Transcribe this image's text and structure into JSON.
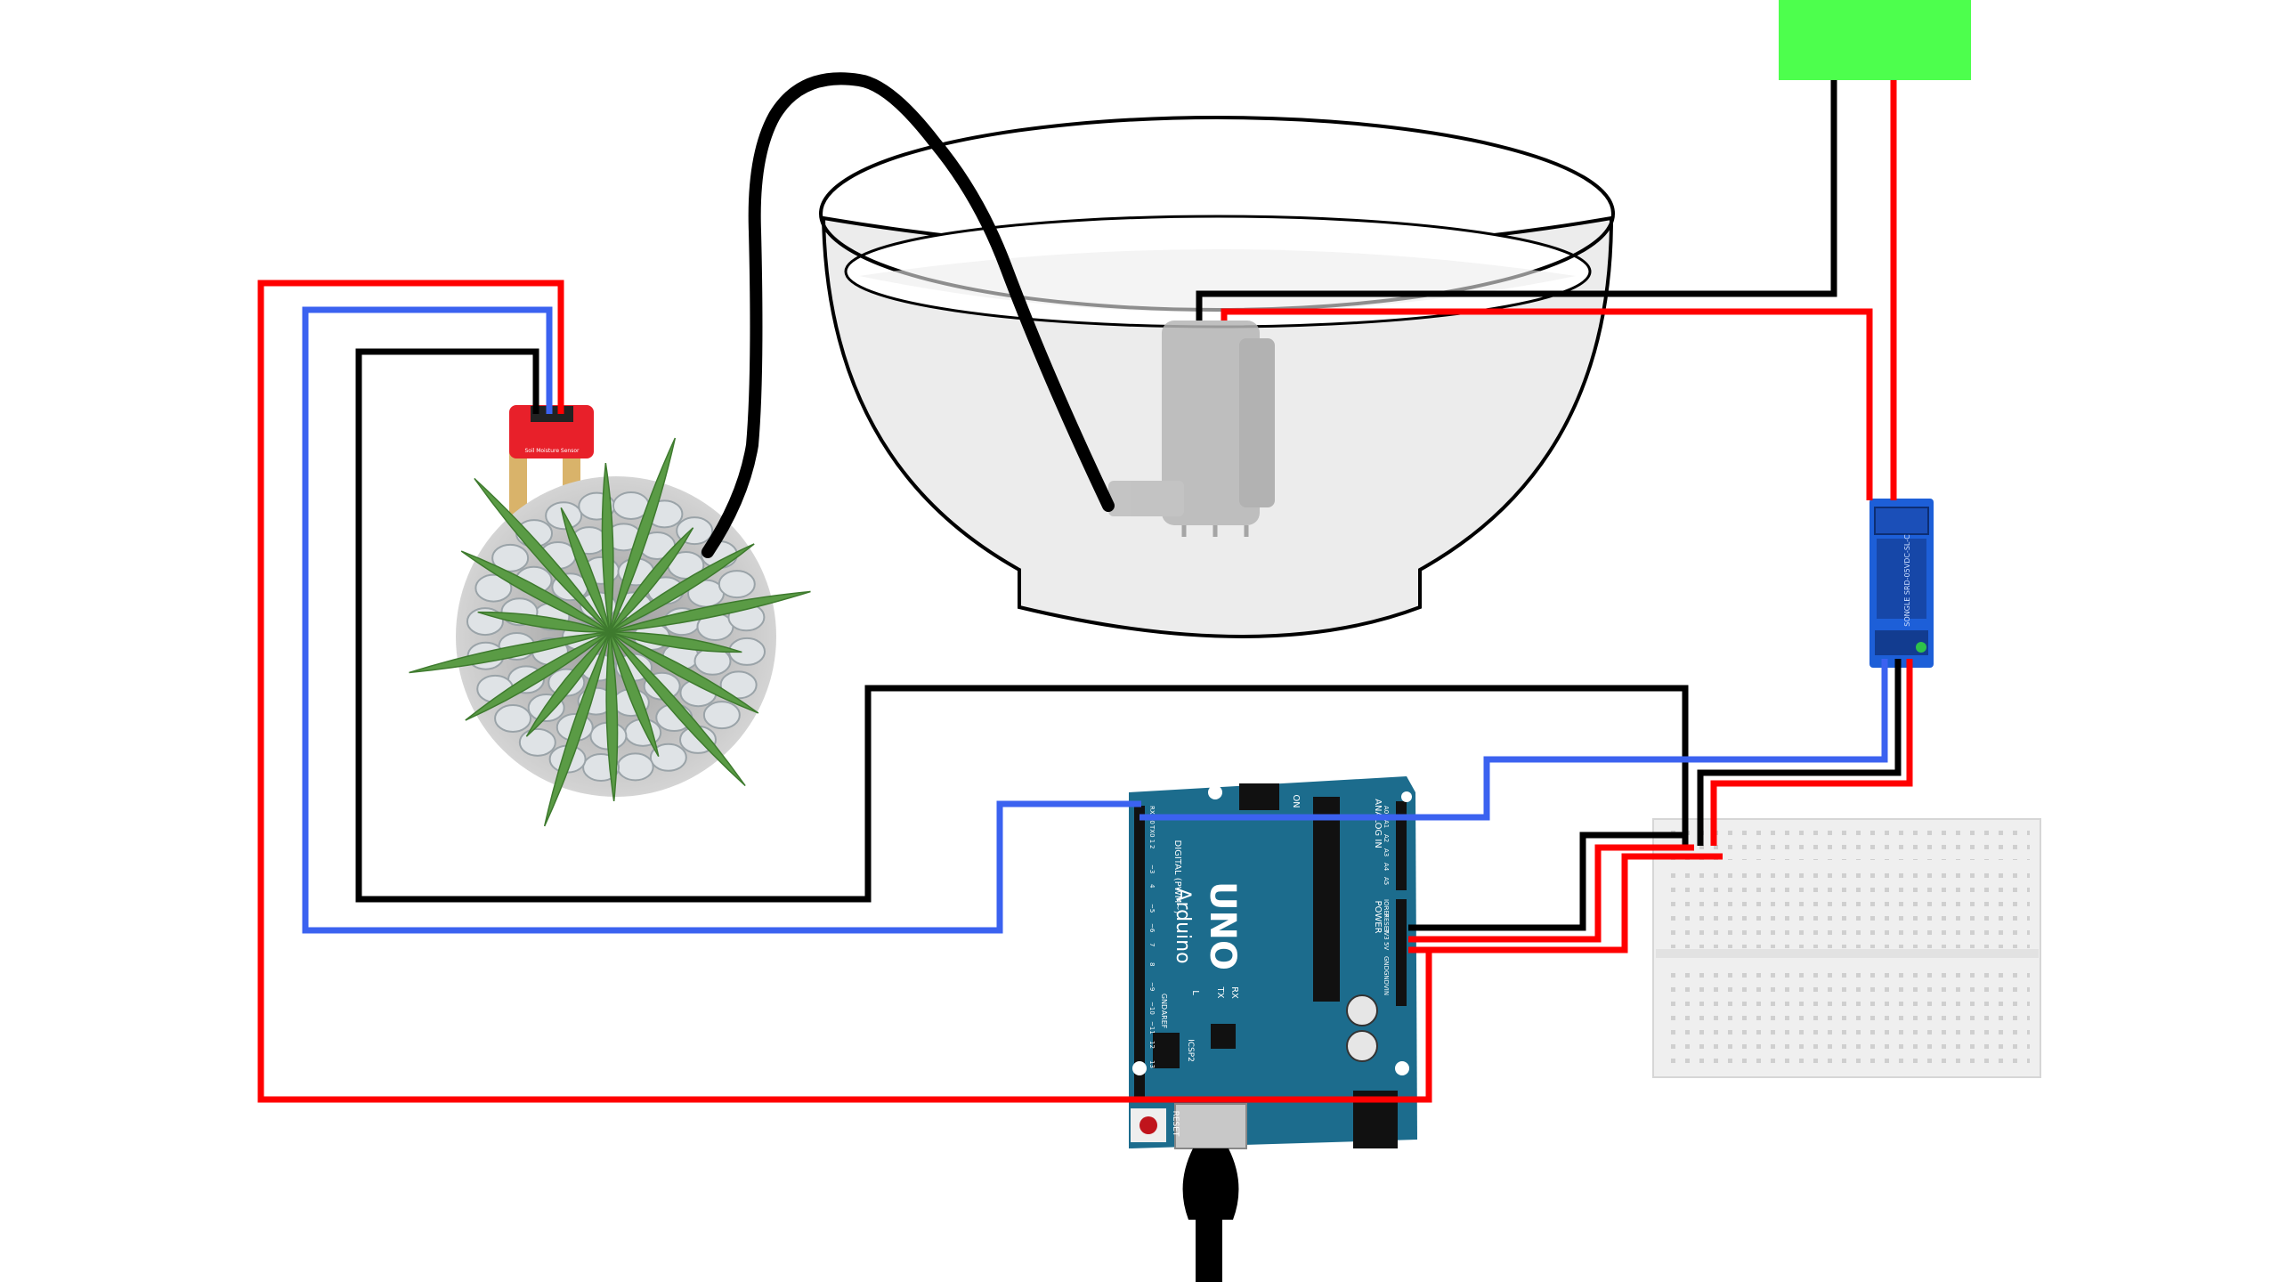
{
  "colors": {
    "wire_red": "#ff0000",
    "wire_blue": "#3b62f0",
    "wire_black": "#000000",
    "arduino_board": "#1c6c8d",
    "power_supply": "#4dff4d",
    "relay_board": "#1d5fd8",
    "sensor_board": "#e8202a",
    "bowl_fill": "#ececec",
    "plant_green": "#5a9b45"
  },
  "icons": {
    "arduino": "arduino-uno-board-icon",
    "relay": "relay-module-icon",
    "sensor": "soil-moisture-sensor-icon",
    "pump": "water-pump-icon",
    "plant": "potted-plant-icon",
    "bowl": "water-bowl-icon",
    "breadboard": "breadboard-icon",
    "power": "power-supply-icon",
    "usb": "usb-cable-icon"
  },
  "arduino": {
    "brand": "UNO",
    "name": "Arduino",
    "digital_label": "DIGITAL (PWM~)",
    "power_label": "POWER",
    "analog_label": "ANALOG IN",
    "icsp_label": "ICSP2",
    "reset_label": "RESET",
    "tx_label": "TX",
    "rx_label": "RX",
    "l_label": "L",
    "on_label": "ON",
    "aref_label": "AREF",
    "gnd_label": "GND",
    "digital_pins": [
      "RX0 0",
      "TX0 1",
      "2",
      "~3",
      "4",
      "~5",
      "~6",
      "7",
      "8",
      "~9",
      "~10",
      "~11",
      "12",
      "13"
    ],
    "power_pins": [
      "IOREF",
      "RESET",
      "3V3",
      "5V",
      "GND",
      "GND",
      "VIN"
    ],
    "analog_pins": [
      "A0",
      "A1",
      "A2",
      "A3",
      "A4",
      "A5"
    ]
  },
  "sensor": {
    "label": "Soil Moisture Sensor"
  },
  "relay": {
    "label": "SONGLE SRD-05VDC-SL-C"
  }
}
